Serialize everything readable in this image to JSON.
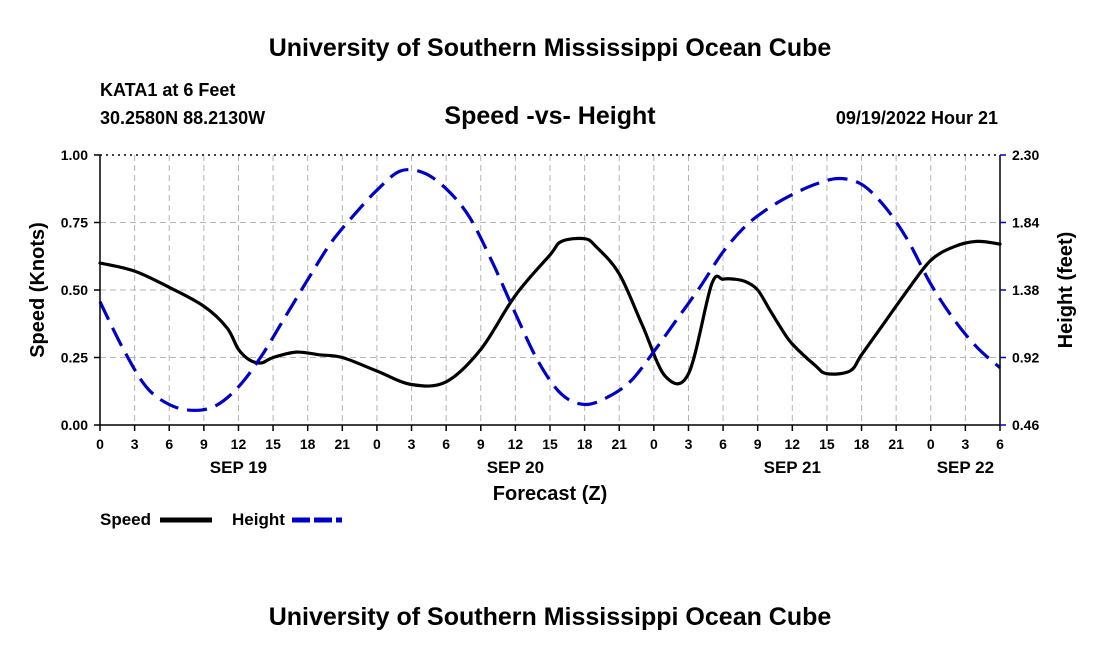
{
  "header": {
    "title": "University of Southern Mississippi Ocean Cube",
    "station": "KATA1 at 6 Feet",
    "coords": "30.2580N  88.2130W",
    "chart_title": "Speed -vs- Height",
    "timestamp": "09/19/2022 Hour 21"
  },
  "footer": {
    "title": "University of Southern Mississippi Ocean Cube"
  },
  "colors": {
    "speed": "#000000",
    "height": "#0000cc",
    "grid": "#b4b4b4"
  },
  "chart_data": {
    "type": "line",
    "title": "Speed -vs- Height",
    "xlabel": "Forecast (Z)",
    "ylabel": "Speed (Knots)",
    "y2label": "Height (feet)",
    "xlim": [
      0,
      78
    ],
    "ylim": [
      0,
      1.0
    ],
    "y2lim": [
      0.46,
      2.3
    ],
    "x_ticks": [
      0,
      3,
      6,
      9,
      12,
      15,
      18,
      21,
      24,
      27,
      30,
      33,
      36,
      39,
      42,
      45,
      48,
      51,
      54,
      57,
      60,
      63,
      66,
      69,
      72,
      75,
      78
    ],
    "x_tick_labels": [
      "0",
      "3",
      "6",
      "9",
      "12",
      "15",
      "18",
      "21",
      "0",
      "3",
      "6",
      "9",
      "12",
      "15",
      "18",
      "21",
      "0",
      "3",
      "6",
      "9",
      "12",
      "15",
      "18",
      "21",
      "0",
      "3",
      "6"
    ],
    "y_ticks": [
      0,
      0.25,
      0.5,
      0.75,
      1.0
    ],
    "y_tick_labels": [
      "0.00",
      "0.25",
      "0.50",
      "0.75",
      "1.00"
    ],
    "y2_ticks": [
      0.46,
      0.92,
      1.38,
      1.84,
      2.3
    ],
    "y2_tick_labels": [
      "0.46",
      "0.92",
      "1.38",
      "1.84",
      "2.30"
    ],
    "day_labels": [
      {
        "x": 12,
        "label": "SEP 19"
      },
      {
        "x": 36,
        "label": "SEP 20"
      },
      {
        "x": 60,
        "label": "SEP 21"
      },
      {
        "x": 75,
        "label": "SEP 22"
      }
    ],
    "grid": true,
    "legend": {
      "position": "bottom-left",
      "entries": [
        "Speed",
        "Height"
      ]
    },
    "series": [
      {
        "name": "Speed",
        "axis": "left",
        "style": "solid",
        "x": [
          0,
          3,
          6,
          9,
          11,
          12,
          13,
          14,
          15,
          17,
          19,
          21,
          24,
          27,
          30,
          33,
          36,
          39,
          40,
          42,
          43,
          45,
          47,
          49,
          51,
          53,
          54,
          55,
          56,
          57,
          58,
          59,
          60,
          62,
          63,
          65,
          66,
          68,
          70,
          72,
          74,
          76,
          78
        ],
        "values": [
          0.6,
          0.57,
          0.51,
          0.44,
          0.36,
          0.28,
          0.24,
          0.23,
          0.25,
          0.27,
          0.26,
          0.25,
          0.2,
          0.15,
          0.16,
          0.28,
          0.48,
          0.63,
          0.68,
          0.69,
          0.66,
          0.56,
          0.37,
          0.18,
          0.19,
          0.52,
          0.54,
          0.54,
          0.53,
          0.5,
          0.43,
          0.36,
          0.3,
          0.22,
          0.19,
          0.2,
          0.26,
          0.38,
          0.5,
          0.61,
          0.66,
          0.68,
          0.67
        ]
      },
      {
        "name": "Height",
        "axis": "right",
        "style": "dashed",
        "x": [
          0,
          2,
          4,
          6,
          8,
          10,
          12,
          14,
          16,
          18,
          20,
          22,
          24,
          26,
          28,
          30,
          32,
          34,
          36,
          38,
          40,
          42,
          44,
          46,
          48,
          50,
          52,
          54,
          56,
          58,
          60,
          62,
          64,
          66,
          68,
          70,
          72,
          74,
          76,
          78
        ],
        "values": [
          1.3,
          0.98,
          0.72,
          0.6,
          0.56,
          0.59,
          0.72,
          0.93,
          1.19,
          1.45,
          1.7,
          1.89,
          2.06,
          2.19,
          2.18,
          2.07,
          1.88,
          1.57,
          1.22,
          0.89,
          0.67,
          0.6,
          0.65,
          0.76,
          0.96,
          1.18,
          1.4,
          1.64,
          1.82,
          1.94,
          2.03,
          2.1,
          2.14,
          2.1,
          1.95,
          1.72,
          1.42,
          1.18,
          0.99,
          0.85
        ]
      }
    ]
  }
}
